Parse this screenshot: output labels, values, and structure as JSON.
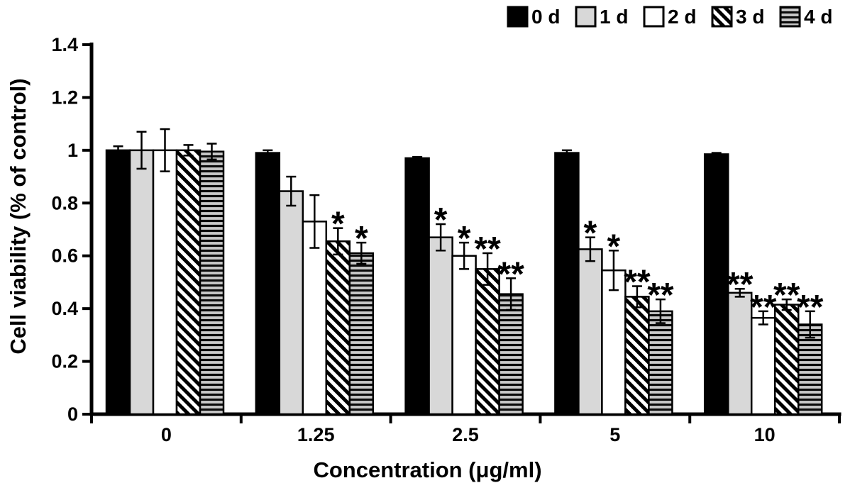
{
  "colors": {
    "bar_black": "#000000",
    "bar_gray": "#d8d8d8",
    "bar_white": "#ffffff",
    "axis": "#000000",
    "background": "#ffffff"
  },
  "chart_data": {
    "type": "bar",
    "title": "",
    "xlabel": "Concentration (μg/ml)",
    "ylabel": "Cell viability (% of control)",
    "ylim": [
      0,
      1.4
    ],
    "yticks": [
      0,
      0.2,
      0.4,
      0.6,
      0.8,
      1,
      1.2,
      1.4
    ],
    "ytick_labels": [
      "0",
      "0.2",
      "0.4",
      "0.6",
      "0.8",
      "1",
      "1.2",
      "1.4"
    ],
    "categories": [
      "0",
      "1.25",
      "2.5",
      "5",
      "10"
    ],
    "grid": false,
    "legend_position": "top-right",
    "error_bars": true,
    "series": [
      {
        "name": "0 d",
        "pattern": "solid-black",
        "values": [
          1.0,
          0.99,
          0.97,
          0.99,
          0.985
        ],
        "errors": [
          0.015,
          0.01,
          0.005,
          0.01,
          0.005
        ],
        "sig": [
          "",
          "",
          "",
          "",
          ""
        ]
      },
      {
        "name": "1 d",
        "pattern": "solid-gray",
        "values": [
          1.0,
          0.845,
          0.67,
          0.625,
          0.46
        ],
        "errors": [
          0.07,
          0.055,
          0.05,
          0.045,
          0.015
        ],
        "sig": [
          "",
          "",
          "*",
          "*",
          "**"
        ]
      },
      {
        "name": "2 d",
        "pattern": "open",
        "values": [
          1.0,
          0.73,
          0.6,
          0.545,
          0.365
        ],
        "errors": [
          0.08,
          0.1,
          0.05,
          0.075,
          0.025
        ],
        "sig": [
          "",
          "",
          "*",
          "*",
          "**"
        ]
      },
      {
        "name": "3 d",
        "pattern": "diagonal-hatch",
        "values": [
          1.0,
          0.655,
          0.55,
          0.445,
          0.415
        ],
        "errors": [
          0.02,
          0.05,
          0.06,
          0.04,
          0.02
        ],
        "sig": [
          "",
          "*",
          "**",
          "**",
          "**"
        ]
      },
      {
        "name": "4 d",
        "pattern": "horizontal-lines",
        "values": [
          0.995,
          0.61,
          0.455,
          0.39,
          0.34
        ],
        "errors": [
          0.03,
          0.04,
          0.06,
          0.045,
          0.05
        ],
        "sig": [
          "",
          "*",
          "**",
          "**",
          "**"
        ]
      }
    ]
  }
}
